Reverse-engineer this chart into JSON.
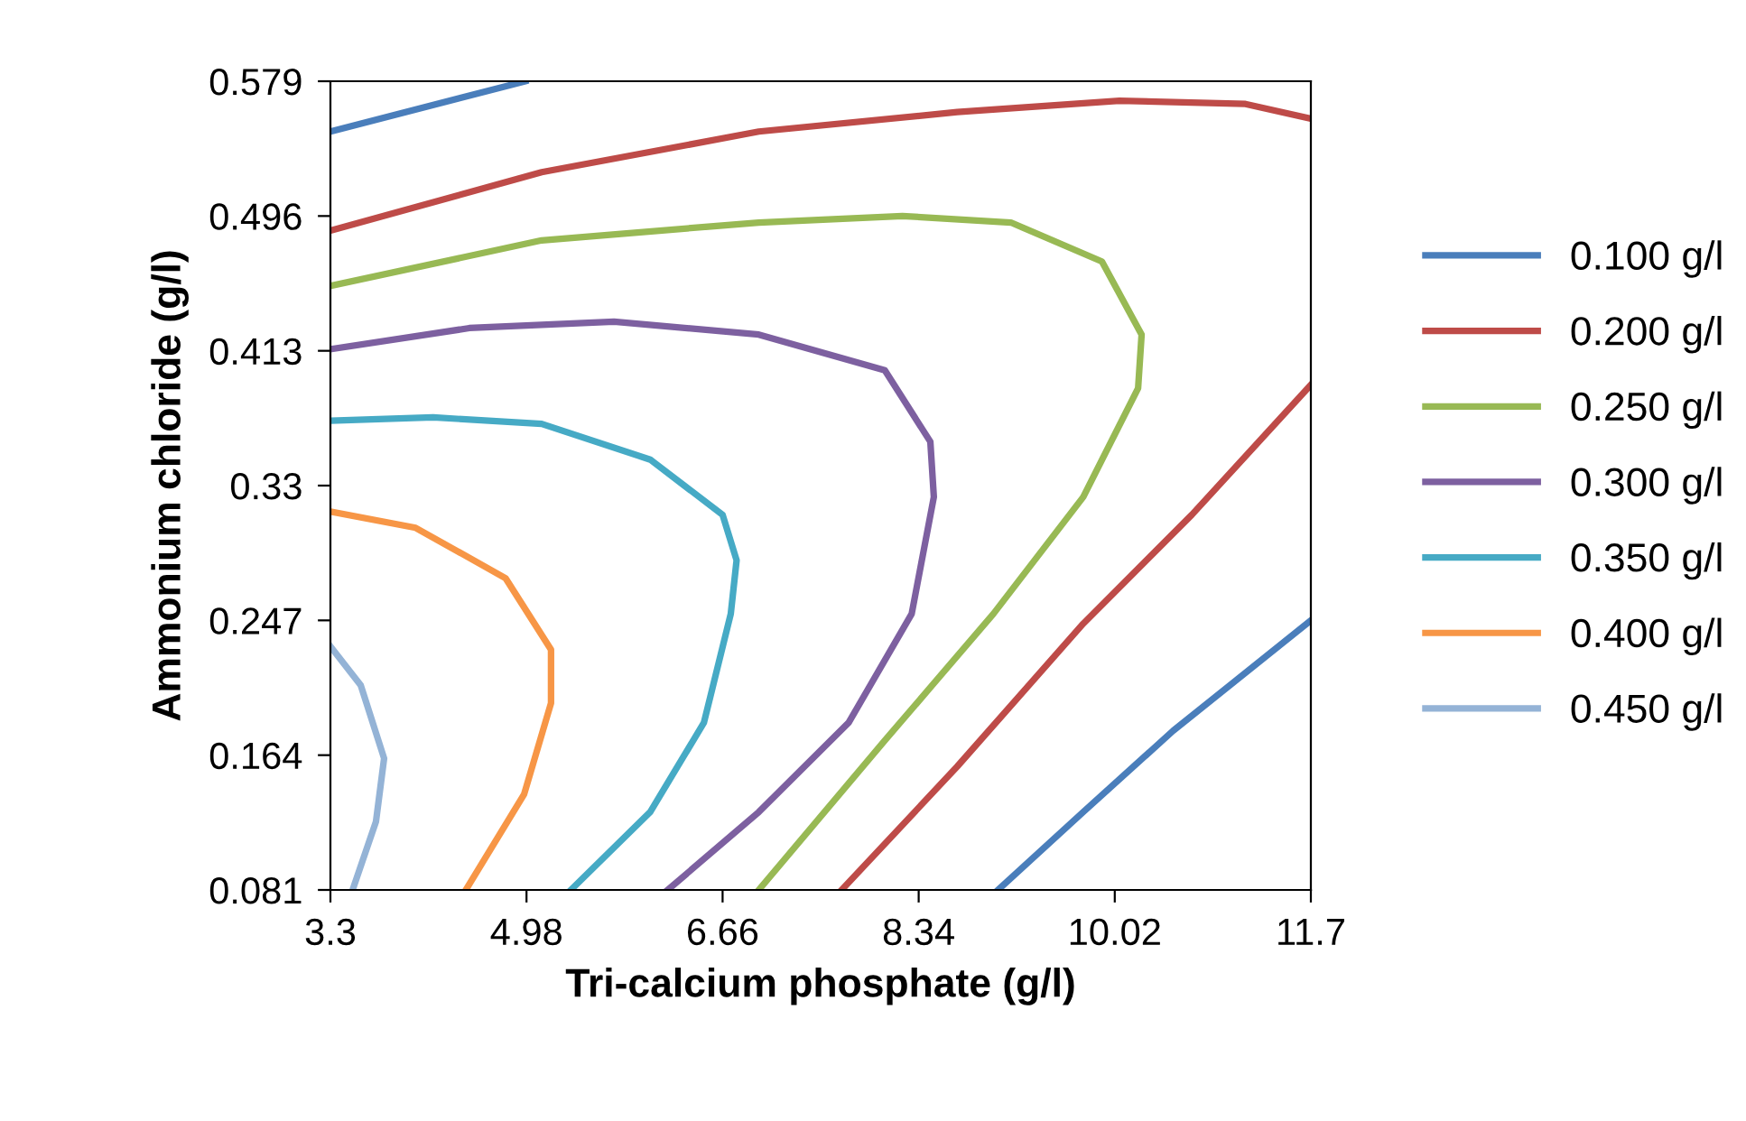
{
  "chart_data": {
    "type": "line",
    "xlabel": "Tri-calcium phosphate (g/l)",
    "ylabel": "Ammonium chloride (g/l)",
    "xlim": [
      3.3,
      11.7
    ],
    "ylim": [
      0.081,
      0.579
    ],
    "xticks": [
      3.3,
      4.98,
      6.66,
      8.34,
      10.02,
      11.7
    ],
    "yticks": [
      0.081,
      0.164,
      0.247,
      0.33,
      0.413,
      0.496,
      0.579
    ],
    "grid": false,
    "legend": "right",
    "marker": "none",
    "line_style": "solid",
    "series": [
      {
        "name": "0.100 g/l",
        "color": "#4a7ebb",
        "x": [
          3.3,
          4.97,
          null,
          9.02,
          9.75,
          10.52,
          11.7
        ],
        "values": [
          0.548,
          0.579,
          null,
          0.081,
          0.129,
          0.179,
          0.247
        ]
      },
      {
        "name": "0.200 g/l",
        "color": "#be4b48",
        "x": [
          3.3,
          5.11,
          6.97,
          8.67,
          10.06,
          11.14,
          11.7,
          null,
          7.68,
          8.67,
          9.75,
          10.68,
          11.7
        ],
        "values": [
          0.487,
          0.523,
          0.548,
          0.56,
          0.567,
          0.565,
          0.556,
          null,
          0.081,
          0.157,
          0.245,
          0.312,
          0.392
        ]
      },
      {
        "name": "0.250 g/l",
        "color": "#98b954",
        "x": [
          3.3,
          5.11,
          6.97,
          8.2,
          9.13,
          9.91,
          10.25,
          10.22,
          9.75,
          8.98,
          8.05,
          6.97
        ],
        "values": [
          0.453,
          0.481,
          0.492,
          0.496,
          0.492,
          0.468,
          0.423,
          0.39,
          0.323,
          0.251,
          0.173,
          0.081
        ]
      },
      {
        "name": "0.300 g/l",
        "color": "#7d60a0",
        "x": [
          3.3,
          4.49,
          5.73,
          6.97,
          8.05,
          8.44,
          8.47,
          8.28,
          7.74,
          6.97,
          6.19
        ],
        "values": [
          0.414,
          0.427,
          0.431,
          0.423,
          0.401,
          0.357,
          0.323,
          0.251,
          0.184,
          0.129,
          0.081
        ]
      },
      {
        "name": "0.350 g/l",
        "color": "#46aac5",
        "x": [
          3.3,
          4.18,
          5.11,
          6.04,
          6.66,
          6.78,
          6.73,
          6.5,
          6.04,
          5.36
        ],
        "values": [
          0.37,
          0.372,
          0.368,
          0.346,
          0.312,
          0.284,
          0.251,
          0.184,
          0.129,
          0.081
        ]
      },
      {
        "name": "0.400 g/l",
        "color": "#f79646",
        "x": [
          3.3,
          4.03,
          4.8,
          5.19,
          5.19,
          4.96,
          4.46
        ],
        "values": [
          0.314,
          0.304,
          0.273,
          0.229,
          0.196,
          0.14,
          0.081
        ]
      },
      {
        "name": "0.450 g/l",
        "color": "#94b3d6",
        "x": [
          3.3,
          3.56,
          3.76,
          3.69,
          3.49
        ],
        "values": [
          0.231,
          0.207,
          0.162,
          0.123,
          0.081
        ]
      }
    ]
  }
}
